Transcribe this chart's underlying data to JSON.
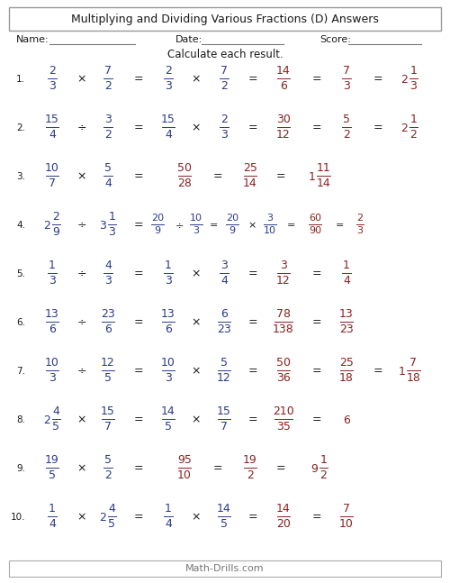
{
  "title": "Multiplying and Dividing Various Fractions (D) Answers",
  "instruction": "Calculate each result.",
  "footer": "Math-Drills.com",
  "bg_color": "#ffffff",
  "BLUE": "#2B3A8B",
  "RED": "#8B2020",
  "BLACK": "#1a1a1a",
  "GRAY": "#777777",
  "problems": [
    {
      "num": "1.",
      "type": "simple",
      "q1_whole": "",
      "q1_n": "2",
      "q1_d": "3",
      "op1": "×",
      "q2_whole": "",
      "q2_n": "7",
      "q2_d": "2",
      "s1_n": "2",
      "s1_d": "3",
      "op2": "×",
      "s2_n": "7",
      "s2_d": "2",
      "f1_n": "14",
      "f1_d": "6",
      "f2_n": "7",
      "f2_d": "3",
      "ans_whole": "2",
      "ans_n": "1",
      "ans_d": "3"
    },
    {
      "num": "2.",
      "type": "simple",
      "q1_whole": "",
      "q1_n": "15",
      "q1_d": "4",
      "op1": "÷",
      "q2_whole": "",
      "q2_n": "3",
      "q2_d": "2",
      "s1_n": "15",
      "s1_d": "4",
      "op2": "×",
      "s2_n": "2",
      "s2_d": "3",
      "f1_n": "30",
      "f1_d": "12",
      "f2_n": "5",
      "f2_d": "2",
      "ans_whole": "2",
      "ans_n": "1",
      "ans_d": "2"
    },
    {
      "num": "3.",
      "type": "short",
      "q1_whole": "",
      "q1_n": "10",
      "q1_d": "7",
      "op1": "×",
      "q2_whole": "",
      "q2_n": "5",
      "q2_d": "4",
      "f1_n": "50",
      "f1_d": "28",
      "f2_n": "25",
      "f2_d": "14",
      "ans_whole": "1",
      "ans_n": "11",
      "ans_d": "14"
    },
    {
      "num": "4.",
      "type": "long",
      "q1_whole": "2",
      "q1_n": "2",
      "q1_d": "9",
      "op1": "÷",
      "q2_whole": "3",
      "q2_n": "1",
      "q2_d": "3",
      "sa_n": "20",
      "sa_d": "9",
      "op_a": "÷",
      "sb_n": "10",
      "sb_d": "3",
      "sc_n": "20",
      "sc_d": "9",
      "op_b": "×",
      "sd_n": "3",
      "sd_d": "10",
      "f1_n": "60",
      "f1_d": "90",
      "f2_n": "2",
      "f2_d": "3",
      "ans_whole": "",
      "ans_n": "",
      "ans_d": ""
    },
    {
      "num": "5.",
      "type": "simple",
      "q1_whole": "",
      "q1_n": "1",
      "q1_d": "3",
      "op1": "÷",
      "q2_whole": "",
      "q2_n": "4",
      "q2_d": "3",
      "s1_n": "1",
      "s1_d": "3",
      "op2": "×",
      "s2_n": "3",
      "s2_d": "4",
      "f1_n": "3",
      "f1_d": "12",
      "f2_n": "1",
      "f2_d": "4",
      "ans_whole": "",
      "ans_n": "",
      "ans_d": ""
    },
    {
      "num": "6.",
      "type": "simple",
      "q1_whole": "",
      "q1_n": "13",
      "q1_d": "6",
      "op1": "÷",
      "q2_whole": "",
      "q2_n": "23",
      "q2_d": "6",
      "s1_n": "13",
      "s1_d": "6",
      "op2": "×",
      "s2_n": "6",
      "s2_d": "23",
      "f1_n": "78",
      "f1_d": "138",
      "f2_n": "13",
      "f2_d": "23",
      "ans_whole": "",
      "ans_n": "",
      "ans_d": ""
    },
    {
      "num": "7.",
      "type": "simple",
      "q1_whole": "",
      "q1_n": "10",
      "q1_d": "3",
      "op1": "÷",
      "q2_whole": "",
      "q2_n": "12",
      "q2_d": "5",
      "s1_n": "10",
      "s1_d": "3",
      "op2": "×",
      "s2_n": "5",
      "s2_d": "12",
      "f1_n": "50",
      "f1_d": "36",
      "f2_n": "25",
      "f2_d": "18",
      "ans_whole": "1",
      "ans_n": "7",
      "ans_d": "18"
    },
    {
      "num": "8.",
      "type": "simple_no_ans",
      "q1_whole": "2",
      "q1_n": "4",
      "q1_d": "5",
      "op1": "×",
      "q2_whole": "",
      "q2_n": "15",
      "q2_d": "7",
      "s1_n": "14",
      "s1_d": "5",
      "op2": "×",
      "s2_n": "15",
      "s2_d": "7",
      "f1_n": "210",
      "f1_d": "35",
      "f2_n": "6",
      "f2_d": "",
      "ans_whole": "",
      "ans_n": "",
      "ans_d": ""
    },
    {
      "num": "9.",
      "type": "short",
      "q1_whole": "",
      "q1_n": "19",
      "q1_d": "5",
      "op1": "×",
      "q2_whole": "",
      "q2_n": "5",
      "q2_d": "2",
      "f1_n": "95",
      "f1_d": "10",
      "f2_n": "19",
      "f2_d": "2",
      "ans_whole": "9",
      "ans_n": "1",
      "ans_d": "2"
    },
    {
      "num": "10.",
      "type": "simple",
      "q1_whole": "",
      "q1_n": "1",
      "q1_d": "4",
      "op1": "×",
      "q2_whole": "2",
      "q2_n": "4",
      "q2_d": "5",
      "s1_n": "1",
      "s1_d": "4",
      "op2": "×",
      "s2_n": "14",
      "s2_d": "5",
      "f1_n": "14",
      "f1_d": "20",
      "f2_n": "7",
      "f2_d": "10",
      "ans_whole": "",
      "ans_n": "",
      "ans_d": ""
    }
  ]
}
